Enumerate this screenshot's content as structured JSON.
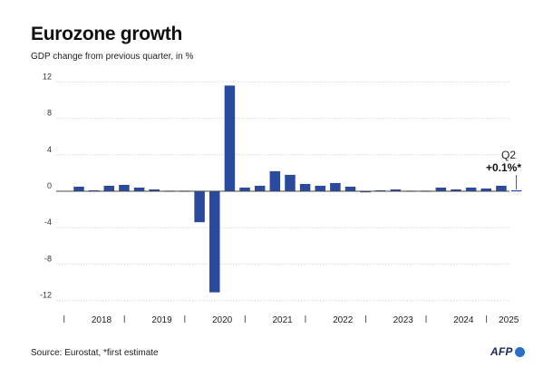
{
  "header": {
    "title": "Eurozone growth",
    "subtitle": "GDP change from previous quarter, in %"
  },
  "footer": {
    "source": "Source: Eurostat, *first estimate",
    "logo": "AFP"
  },
  "colors": {
    "bar": "#2b4a9c",
    "grid": "#d9d9d9",
    "zero": "#444444"
  },
  "chart_data": {
    "type": "bar",
    "title": "Eurozone growth",
    "subtitle": "GDP change from previous quarter, in %",
    "xlabel": "",
    "ylabel": "",
    "ylim": [
      -13,
      14
    ],
    "yticks": [
      -12,
      -8,
      -4,
      0,
      4,
      8,
      12
    ],
    "grid": true,
    "years": [
      "2018",
      "2019",
      "2020",
      "2021",
      "2022",
      "2023",
      "2024",
      "2025"
    ],
    "categories": [
      "2018 Q1",
      "2018 Q2",
      "2018 Q3",
      "2018 Q4",
      "2019 Q1",
      "2019 Q2",
      "2019 Q3",
      "2019 Q4",
      "2020 Q1",
      "2020 Q2",
      "2020 Q3",
      "2020 Q4",
      "2021 Q1",
      "2021 Q2",
      "2021 Q3",
      "2021 Q4",
      "2022 Q1",
      "2022 Q2",
      "2022 Q3",
      "2022 Q4",
      "2023 Q1",
      "2023 Q2",
      "2023 Q3",
      "2023 Q4",
      "2024 Q1",
      "2024 Q2",
      "2024 Q3",
      "2024 Q4",
      "2025 Q1",
      "2025 Q2"
    ],
    "values": [
      0.5,
      0.1,
      0.6,
      0.7,
      0.4,
      0.2,
      0.0,
      0.0,
      -3.4,
      -11.1,
      11.6,
      0.4,
      0.6,
      2.2,
      1.8,
      0.8,
      0.6,
      0.9,
      0.5,
      -0.1,
      0.1,
      0.2,
      0.0,
      0.0,
      0.4,
      0.2,
      0.4,
      0.3,
      0.6,
      0.1
    ],
    "annotation": {
      "label": "Q2",
      "value": "+0.1%*"
    }
  }
}
